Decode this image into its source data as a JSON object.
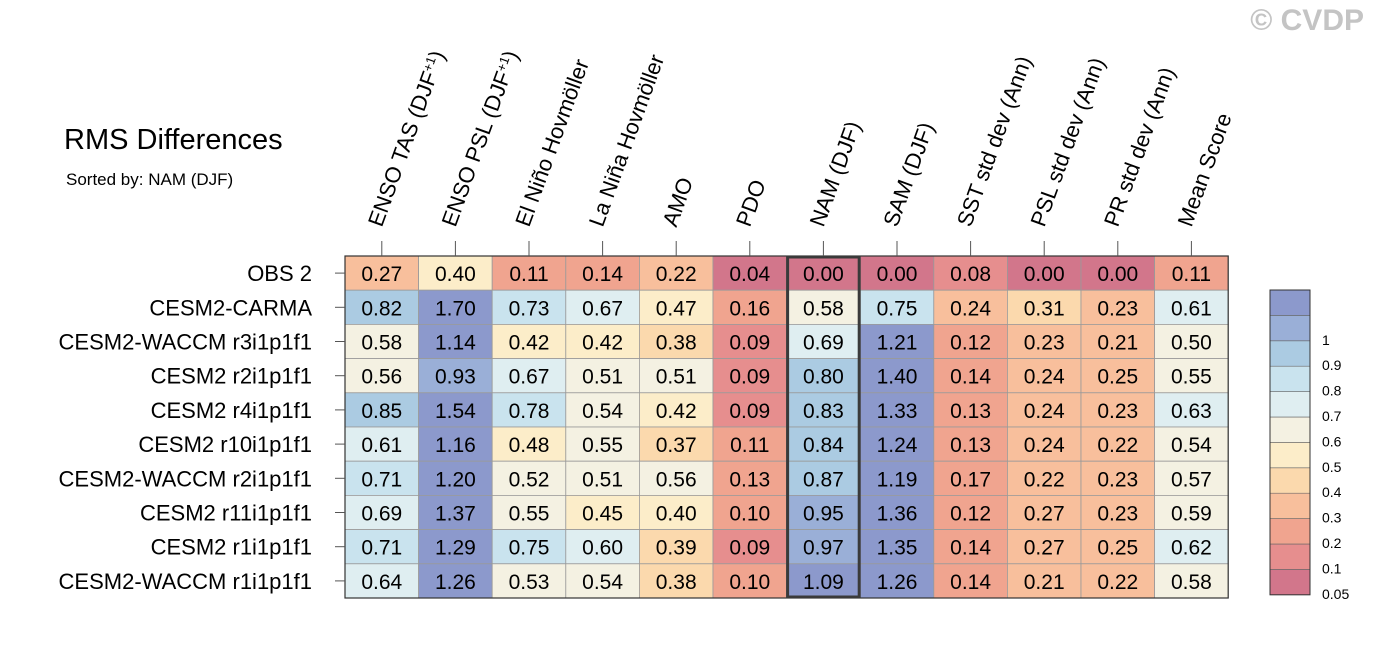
{
  "header": {
    "title": "RMS Differences",
    "subtitle": "Sorted by: NAM (DJF)",
    "credit": "© CVDP"
  },
  "chart_data": {
    "type": "heatmap",
    "title": "RMS Differences",
    "subtitle": "Sorted by: NAM (DJF)",
    "columns": [
      "ENSO TAS (DJF+1)",
      "ENSO PSL (DJF+1)",
      "El Niño Hovmöller",
      "La Niña Hovmöller",
      "AMO",
      "PDO",
      "NAM (DJF)",
      "SAM (DJF)",
      "SST std dev (Ann)",
      "PSL std dev (Ann)",
      "PR std dev (Ann)",
      "Mean Score"
    ],
    "column_labels": [
      {
        "text": "ENSO TAS (DJF",
        "sup": "+1",
        "close": ")"
      },
      {
        "text": "ENSO PSL (DJF",
        "sup": "+1",
        "close": ")"
      },
      {
        "text": "El Niño Hovmöller"
      },
      {
        "text": "La Niña Hovmöller"
      },
      {
        "text": "AMO"
      },
      {
        "text": "PDO"
      },
      {
        "text": "NAM (DJF)"
      },
      {
        "text": "SAM (DJF)"
      },
      {
        "text": "SST std dev (Ann)"
      },
      {
        "text": "PSL std dev (Ann)"
      },
      {
        "text": "PR std dev (Ann)"
      },
      {
        "text": "Mean Score"
      }
    ],
    "rows": [
      "OBS 2",
      "CESM2-CARMA",
      "CESM2-WACCM r3i1p1f1",
      "CESM2 r2i1p1f1",
      "CESM2 r4i1p1f1",
      "CESM2 r10i1p1f1",
      "CESM2-WACCM r2i1p1f1",
      "CESM2 r11i1p1f1",
      "CESM2 r1i1p1f1",
      "CESM2-WACCM r1i1p1f1"
    ],
    "values": [
      [
        "0.27",
        "0.40",
        "0.11",
        "0.14",
        "0.22",
        "0.04",
        "0.00",
        "0.00",
        "0.08",
        "0.00",
        "0.00",
        "0.11"
      ],
      [
        "0.82",
        "1.70",
        "0.73",
        "0.67",
        "0.47",
        "0.16",
        "0.58",
        "0.75",
        "0.24",
        "0.31",
        "0.23",
        "0.61"
      ],
      [
        "0.58",
        "1.14",
        "0.42",
        "0.42",
        "0.38",
        "0.09",
        "0.69",
        "1.21",
        "0.12",
        "0.23",
        "0.21",
        "0.50"
      ],
      [
        "0.56",
        "0.93",
        "0.67",
        "0.51",
        "0.51",
        "0.09",
        "0.80",
        "1.40",
        "0.14",
        "0.24",
        "0.25",
        "0.55"
      ],
      [
        "0.85",
        "1.54",
        "0.78",
        "0.54",
        "0.42",
        "0.09",
        "0.83",
        "1.33",
        "0.13",
        "0.24",
        "0.23",
        "0.63"
      ],
      [
        "0.61",
        "1.16",
        "0.48",
        "0.55",
        "0.37",
        "0.11",
        "0.84",
        "1.24",
        "0.13",
        "0.24",
        "0.22",
        "0.54"
      ],
      [
        "0.71",
        "1.20",
        "0.52",
        "0.51",
        "0.56",
        "0.13",
        "0.87",
        "1.19",
        "0.17",
        "0.22",
        "0.23",
        "0.57"
      ],
      [
        "0.69",
        "1.37",
        "0.55",
        "0.45",
        "0.40",
        "0.10",
        "0.95",
        "1.36",
        "0.12",
        "0.27",
        "0.23",
        "0.59"
      ],
      [
        "0.71",
        "1.29",
        "0.75",
        "0.60",
        "0.39",
        "0.09",
        "0.97",
        "1.35",
        "0.14",
        "0.27",
        "0.25",
        "0.62"
      ],
      [
        "0.64",
        "1.26",
        "0.53",
        "0.54",
        "0.38",
        "0.10",
        "1.09",
        "1.26",
        "0.14",
        "0.21",
        "0.22",
        "0.58"
      ]
    ],
    "highlight_column": "NAM (DJF)",
    "colorbar": {
      "levels": [
        "0.05",
        "0.1",
        "0.2",
        "0.3",
        "0.4",
        "0.5",
        "0.6",
        "0.7",
        "0.8",
        "0.9",
        "1"
      ],
      "colors": [
        "#d2768b",
        "#e68e8e",
        "#f0a48f",
        "#f8bf9c",
        "#fbd9ad",
        "#fcedc9",
        "#f4f1e2",
        "#dfeef1",
        "#c9e3ee",
        "#abcbe2",
        "#9aafd7",
        "#8c99cc"
      ]
    },
    "grid": true
  }
}
